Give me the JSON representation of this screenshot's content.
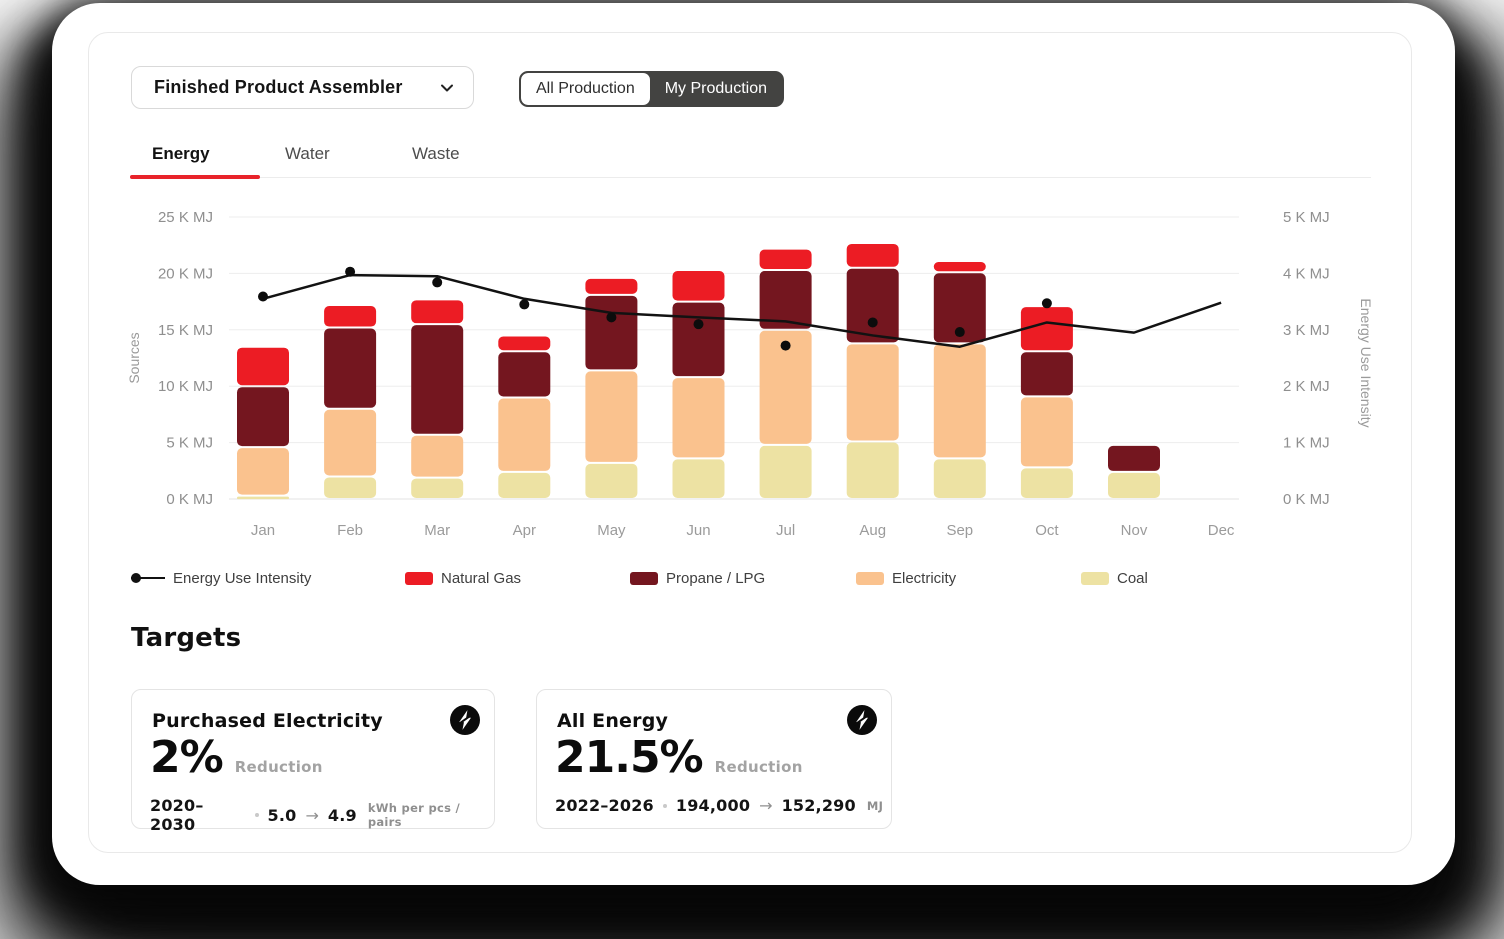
{
  "header": {
    "dropdown_label": "Finished Product Assembler",
    "toggle": {
      "options": [
        "All Production",
        "My Production"
      ],
      "selected": "My Production"
    }
  },
  "tabs": [
    {
      "label": "Energy",
      "active": true
    },
    {
      "label": "Water",
      "active": false
    },
    {
      "label": "Waste",
      "active": false
    }
  ],
  "chart_data": {
    "type": "bar",
    "subtype": "stacked-bar-with-line",
    "categories": [
      "Jan",
      "Feb",
      "Mar",
      "Apr",
      "May",
      "Jun",
      "Jul",
      "Aug",
      "Sep",
      "Oct",
      "Nov",
      "Dec"
    ],
    "left_axis": {
      "title": "Sources",
      "range": [
        0,
        25
      ],
      "tick_labels": [
        "0 K MJ",
        "5 K MJ",
        "10 K MJ",
        "15 K MJ",
        "20 K MJ",
        "25 K MJ"
      ]
    },
    "right_axis": {
      "title": "Energy Use Intensity",
      "range": [
        0,
        5
      ],
      "tick_labels": [
        "0 K MJ",
        "1 K MJ",
        "2 K MJ",
        "3 K MJ",
        "4 K MJ",
        "5 K MJ"
      ]
    },
    "series": [
      {
        "name": "Coal",
        "type": "bar",
        "color": "#EDE2A3",
        "values": [
          0.3,
          2.0,
          1.9,
          2.4,
          3.2,
          3.6,
          4.8,
          5.1,
          3.6,
          2.8,
          2.4,
          0
        ]
      },
      {
        "name": "Electricity",
        "type": "bar",
        "color": "#FAC28E",
        "values": [
          4.3,
          6.0,
          3.8,
          6.6,
          8.2,
          7.2,
          10.2,
          8.7,
          10.2,
          6.3,
          0,
          0
        ]
      },
      {
        "name": "Propane / LPG",
        "type": "bar",
        "color": "#74161F",
        "values": [
          5.4,
          7.2,
          9.8,
          4.1,
          6.7,
          6.7,
          5.3,
          6.7,
          6.3,
          4.0,
          2.4,
          0
        ]
      },
      {
        "name": "Natural Gas",
        "type": "bar",
        "color": "#EC1C24",
        "values": [
          3.5,
          2.0,
          2.2,
          1.4,
          1.5,
          2.8,
          1.9,
          2.2,
          1.0,
          4.0,
          0,
          0
        ]
      },
      {
        "name": "Energy Use Intensity",
        "type": "line",
        "axis": "right",
        "color": "#121212",
        "values": [
          3.55,
          3.97,
          3.95,
          3.55,
          3.3,
          3.22,
          3.15,
          2.9,
          2.7,
          3.13,
          2.95,
          3.48
        ],
        "markers": [
          3.59,
          4.03,
          3.84,
          3.45,
          3.22,
          3.1,
          2.72,
          3.13,
          2.96,
          3.47,
          null,
          null
        ]
      }
    ],
    "legend": [
      {
        "label": "Energy Use Intensity",
        "marker": "line-dot"
      },
      {
        "label": "Natural Gas",
        "marker": "#EC1C24"
      },
      {
        "label": "Propane / LPG",
        "marker": "#74161F"
      },
      {
        "label": "Electricity",
        "marker": "#FAC28E"
      },
      {
        "label": "Coal",
        "marker": "#EDE2A3"
      }
    ],
    "grid": true,
    "legend_position": "bottom"
  },
  "targets": {
    "heading": "Targets",
    "cards": [
      {
        "title": "Purchased Electricity",
        "percent": "2%",
        "percent_label": "Reduction",
        "period": "2020–2030",
        "from": "5.0",
        "to": "4.9",
        "unit": "kWh per pcs / pairs"
      },
      {
        "title": "All Energy",
        "percent": "21.5%",
        "percent_label": "Reduction",
        "period": "2022–2026",
        "from": "194,000",
        "to": "152,290",
        "unit": "MJ"
      }
    ]
  },
  "colors": {
    "accent_red": "#E8232A",
    "toggle_dark": "#434341",
    "axis_text": "#8f8f8f",
    "month_text": "#9b9b9b"
  }
}
